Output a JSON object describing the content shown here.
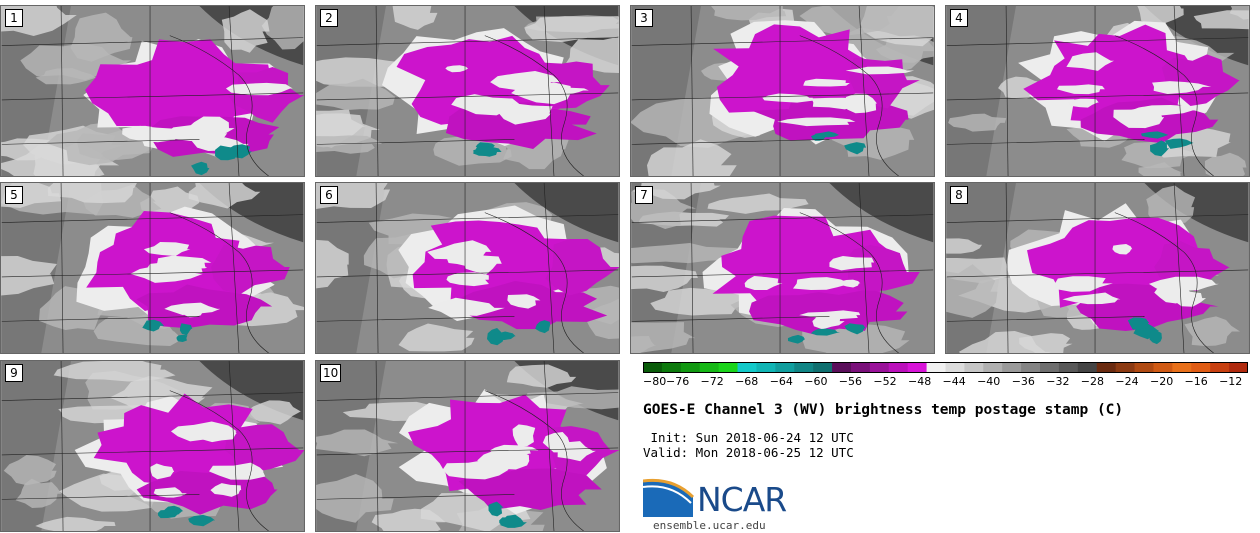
{
  "panels": [
    {
      "label": "1"
    },
    {
      "label": "2"
    },
    {
      "label": "3"
    },
    {
      "label": "4"
    },
    {
      "label": "5"
    },
    {
      "label": "6"
    },
    {
      "label": "7"
    },
    {
      "label": "8"
    },
    {
      "label": "9"
    },
    {
      "label": "10"
    }
  ],
  "colorbar": {
    "ticks": [
      "−80",
      "−76",
      "−72",
      "−68",
      "−64",
      "−60",
      "−56",
      "−52",
      "−48",
      "−44",
      "−40",
      "−36",
      "−32",
      "−28",
      "−24",
      "−20",
      "−16",
      "−12"
    ],
    "colors": [
      "#0a5c0a",
      "#0d7a0d",
      "#119811",
      "#16b816",
      "#1ad41a",
      "#12c9c9",
      "#10b5b5",
      "#109e9e",
      "#108585",
      "#0f6f6f",
      "#5a0f5a",
      "#7a107a",
      "#9a129a",
      "#bb10bb",
      "#d814d8",
      "#f0f0f0",
      "#dcdcdc",
      "#c6c6c6",
      "#b0b0b0",
      "#9a9a9a",
      "#848484",
      "#6e6e6e",
      "#585858",
      "#444444",
      "#6b2b10",
      "#8c3a12",
      "#b04a12",
      "#d05a14",
      "#e8701a",
      "#e05c14",
      "#c84010",
      "#b02a0e"
    ]
  },
  "title": "GOES-E Channel 3 (WV) brightness temp postage stamp (C)",
  "init": " Init: Sun 2018-06-24 12 UTC",
  "valid": "Valid: Mon 2018-06-25 12 UTC",
  "logo": {
    "text": "NCAR",
    "site": "ensemble.ucar.edu",
    "color": "#1a4a8a"
  }
}
